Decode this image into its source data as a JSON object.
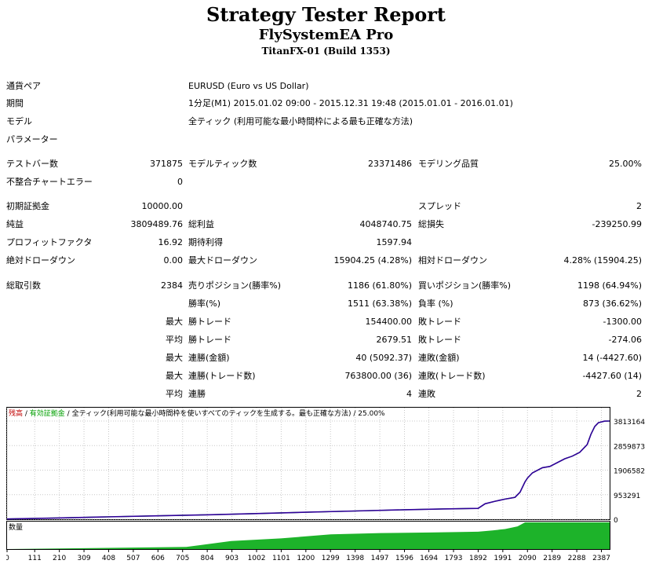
{
  "title": "Strategy Tester Report",
  "ea_name": "FlySystemEA Pro",
  "server": "TitanFX-01 (Build 1353)",
  "info": {
    "pair_label": "通貨ペア",
    "pair_value": "EURUSD (Euro vs US Dollar)",
    "period_label": "期間",
    "period_value": "1分足(M1) 2015.01.02 09:00 - 2015.12.31 19:48 (2015.01.01 - 2016.01.01)",
    "model_label": "モデル",
    "model_value": "全ティック (利用可能な最小時間枠による最も正確な方法)",
    "params_label": "パラメーター"
  },
  "stats": {
    "test_bars_label": "テストバー数",
    "test_bars": "371875",
    "model_ticks_label": "モデルティック数",
    "model_ticks": "23371486",
    "model_quality_label": "モデリング品質",
    "model_quality": "25.00%",
    "mismatch_label": "不整合チャートエラー",
    "mismatch": "0",
    "initial_deposit_label": "初期証拠金",
    "initial_deposit": "10000.00",
    "spread_label": "スプレッド",
    "spread": "2",
    "net_profit_label": "純益",
    "net_profit": "3809489.76",
    "gross_profit_label": "総利益",
    "gross_profit": "4048740.75",
    "gross_loss_label": "総損失",
    "gross_loss": "-239250.99",
    "profit_factor_label": "プロフィットファクタ",
    "profit_factor": "16.92",
    "expected_payoff_label": "期待利得",
    "expected_payoff": "1597.94",
    "abs_dd_label": "絶対ドローダウン",
    "abs_dd": "0.00",
    "max_dd_label": "最大ドローダウン",
    "max_dd": "15904.25 (4.28%)",
    "rel_dd_label": "相対ドローダウン",
    "rel_dd": "4.28% (15904.25)",
    "total_trades_label": "総取引数",
    "total_trades": "2384",
    "short_label": "売りポジション(勝率%)",
    "short": "1186 (61.80%)",
    "long_label": "買いポジション(勝率%)",
    "long": "1198 (64.94%)",
    "win_rate_label": "勝率(%)",
    "win_rate": "1511 (63.38%)",
    "loss_rate_label": "負率 (%)",
    "loss_rate": "873 (36.62%)",
    "max_label": "最大",
    "avg_label": "平均",
    "largest_win_label": "勝トレード",
    "largest_win": "154400.00",
    "largest_loss_label": "敗トレード",
    "largest_loss": "-1300.00",
    "avg_win_label": "勝トレード",
    "avg_win": "2679.51",
    "avg_loss_label": "敗トレード",
    "avg_loss": "-274.06",
    "max_consec_wins_label": "連勝(金額)",
    "max_consec_wins": "40 (5092.37)",
    "max_consec_losses_label": "連敗(金額)",
    "max_consec_losses": "14 (-4427.60)",
    "max_consec_profit_label": "連勝(トレード数)",
    "max_consec_profit": "763800.00 (36)",
    "max_consec_loss_label": "連敗(トレード数)",
    "max_consec_loss": "-4427.60 (14)",
    "avg_consec_wins_label": "連勝",
    "avg_consec_wins": "4",
    "avg_consec_losses_label": "連敗",
    "avg_consec_losses": "2"
  },
  "chart_data": {
    "type": "line",
    "legend": {
      "balance": "残高",
      "sep1": " / ",
      "equity": "有効証拠金",
      "sep2": " / ",
      "model": "全ティック(利用可能な最小時間枠を使いすべてのティックを生成する。最も正確な方法)",
      "quality": " / 25.00%"
    },
    "volume_label": "数量",
    "y_ticks": [
      0,
      953291,
      1906582,
      2859873,
      3813164
    ],
    "x_ticks": [
      0,
      111,
      210,
      309,
      408,
      507,
      606,
      705,
      804,
      903,
      1002,
      1101,
      1200,
      1299,
      1398,
      1497,
      1596,
      1694,
      1793,
      1892,
      1991,
      2090,
      2189,
      2288,
      2387
    ],
    "xlim": [
      0,
      2420
    ],
    "ylim": [
      0,
      3813164
    ],
    "series": [
      {
        "x": [
          0,
          200,
          400,
          600,
          800,
          1000,
          1200,
          1400,
          1600,
          1750,
          1892,
          1920,
          1960,
          2000,
          2040,
          2060,
          2080,
          2090,
          2110,
          2150,
          2180,
          2210,
          2240,
          2270,
          2300,
          2330,
          2345,
          2360,
          2375,
          2400,
          2420
        ],
        "y": [
          10000,
          50000,
          90000,
          130000,
          170000,
          220000,
          270000,
          320000,
          370000,
          400000,
          420000,
          600000,
          700000,
          780000,
          850000,
          1050000,
          1450000,
          1600000,
          1800000,
          2000000,
          2050000,
          2200000,
          2350000,
          2450000,
          2600000,
          2900000,
          3300000,
          3600000,
          3750000,
          3810000,
          3813164
        ]
      }
    ],
    "volume": {
      "x": [
        0,
        720,
        900,
        1100,
        1300,
        1500,
        1700,
        1892,
        1950,
        2000,
        2050,
        2080,
        2420
      ],
      "y": [
        0,
        0.08,
        0.3,
        0.4,
        0.55,
        0.6,
        0.62,
        0.65,
        0.7,
        0.75,
        0.85,
        1.0,
        1.0
      ]
    },
    "colors": {
      "balance": "#2f0099",
      "equity": "#00aa00",
      "volume": "#1db32a",
      "legend_balance": "#c00000",
      "legend_equity": "#00a000",
      "grid": "#c8c8c8"
    }
  }
}
